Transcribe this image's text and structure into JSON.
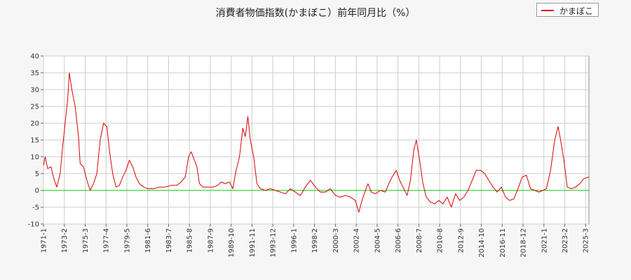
{
  "chart_data": {
    "type": "line",
    "title": "消費者物価指数(かまぼこ）前年同月比（%）",
    "xlabel": "",
    "ylabel": "",
    "ylim": [
      -10,
      40
    ],
    "yticks": [
      40,
      35,
      30,
      25,
      20,
      15,
      10,
      5,
      0,
      -5,
      -10
    ],
    "xlim": [
      "1971-1",
      "2025-7"
    ],
    "xticks": [
      "1971-1",
      "1973-2",
      "1975-3",
      "1977-4",
      "1979-5",
      "1981-6",
      "1983-7",
      "1985-8",
      "1987-9",
      "1989-10",
      "1991-11",
      "1993-12",
      "1996-1",
      "1998-2",
      "2000-3",
      "2002-4",
      "2004-5",
      "2006-6",
      "2008-7",
      "2010-8",
      "2012-9",
      "2014-10",
      "2016-11",
      "2018-12",
      "2021-1",
      "2023-2",
      "2025-3"
    ],
    "grid": true,
    "legend": "top-right",
    "reference_line": {
      "y": 0,
      "color": "#00cc00"
    },
    "series": [
      {
        "name": "かまぼこ",
        "color": "#dd0000",
        "points": [
          [
            "1971-1",
            7.5
          ],
          [
            "1971-3",
            10
          ],
          [
            "1971-6",
            6.5
          ],
          [
            "1971-10",
            7
          ],
          [
            "1972-2",
            3
          ],
          [
            "1972-5",
            1
          ],
          [
            "1972-9",
            5
          ],
          [
            "1972-12",
            13
          ],
          [
            "1973-3",
            20
          ],
          [
            "1973-6",
            27
          ],
          [
            "1973-8",
            35
          ],
          [
            "1973-11",
            30
          ],
          [
            "1974-3",
            25
          ],
          [
            "1974-7",
            16
          ],
          [
            "1974-9",
            8
          ],
          [
            "1975-1",
            7
          ],
          [
            "1975-5",
            3
          ],
          [
            "1975-9",
            0
          ],
          [
            "1976-1",
            2
          ],
          [
            "1976-5",
            5
          ],
          [
            "1976-9",
            15
          ],
          [
            "1977-1",
            20
          ],
          [
            "1977-5",
            19
          ],
          [
            "1977-8",
            12
          ],
          [
            "1977-12",
            5
          ],
          [
            "1978-4",
            1
          ],
          [
            "1978-8",
            1.5
          ],
          [
            "1978-12",
            4
          ],
          [
            "1979-4",
            6
          ],
          [
            "1979-8",
            9
          ],
          [
            "1979-12",
            7
          ],
          [
            "1980-4",
            4
          ],
          [
            "1980-8",
            2
          ],
          [
            "1981-1",
            1
          ],
          [
            "1981-6",
            0.5
          ],
          [
            "1982-1",
            0.5
          ],
          [
            "1982-8",
            1
          ],
          [
            "1983-3",
            1
          ],
          [
            "1983-10",
            1.5
          ],
          [
            "1984-5",
            1.5
          ],
          [
            "1984-10",
            2.5
          ],
          [
            "1985-3",
            4
          ],
          [
            "1985-7",
            10
          ],
          [
            "1985-10",
            11.5
          ],
          [
            "1986-2",
            9
          ],
          [
            "1986-5",
            7
          ],
          [
            "1986-8",
            2
          ],
          [
            "1986-12",
            1
          ],
          [
            "1987-6",
            1
          ],
          [
            "1988-1",
            1
          ],
          [
            "1988-6",
            1.5
          ],
          [
            "1988-10",
            2.5
          ],
          [
            "1989-3",
            2
          ],
          [
            "1989-8",
            2.5
          ],
          [
            "1989-12",
            0.5
          ],
          [
            "1990-4",
            6
          ],
          [
            "1990-8",
            10
          ],
          [
            "1990-12",
            18.5
          ],
          [
            "1991-3",
            16
          ],
          [
            "1991-6",
            22
          ],
          [
            "1991-9",
            15
          ],
          [
            "1992-1",
            10
          ],
          [
            "1992-5",
            2
          ],
          [
            "1992-9",
            0.5
          ],
          [
            "1993-3",
            0
          ],
          [
            "1993-9",
            0.5
          ],
          [
            "1994-3",
            0
          ],
          [
            "1994-9",
            -0.5
          ],
          [
            "1995-3",
            -1
          ],
          [
            "1995-9",
            0.5
          ],
          [
            "1996-3",
            -0.5
          ],
          [
            "1996-9",
            -1.5
          ],
          [
            "1997-3",
            1
          ],
          [
            "1997-9",
            3
          ],
          [
            "1998-3",
            1
          ],
          [
            "1998-9",
            -0.5
          ],
          [
            "1999-3",
            -0.5
          ],
          [
            "1999-9",
            0.5
          ],
          [
            "2000-3",
            -1.5
          ],
          [
            "2000-9",
            -2
          ],
          [
            "2001-3",
            -1.5
          ],
          [
            "2001-9",
            -2
          ],
          [
            "2002-3",
            -3
          ],
          [
            "2002-7",
            -6.5
          ],
          [
            "2002-11",
            -3
          ],
          [
            "2003-3",
            0
          ],
          [
            "2003-6",
            2
          ],
          [
            "2003-10",
            -0.5
          ],
          [
            "2004-3",
            -1
          ],
          [
            "2004-9",
            0
          ],
          [
            "2005-3",
            -0.5
          ],
          [
            "2005-7",
            2
          ],
          [
            "2005-11",
            4
          ],
          [
            "2006-4",
            6
          ],
          [
            "2006-8",
            3
          ],
          [
            "2006-12",
            1
          ],
          [
            "2007-5",
            -1.5
          ],
          [
            "2007-9",
            3
          ],
          [
            "2008-1",
            12
          ],
          [
            "2008-4",
            15
          ],
          [
            "2008-8",
            9
          ],
          [
            "2008-12",
            2
          ],
          [
            "2009-4",
            -2
          ],
          [
            "2009-9",
            -3.5
          ],
          [
            "2010-2",
            -4
          ],
          [
            "2010-7",
            -3
          ],
          [
            "2010-12",
            -4
          ],
          [
            "2011-5",
            -2
          ],
          [
            "2011-10",
            -5
          ],
          [
            "2012-3",
            -1
          ],
          [
            "2012-8",
            -3
          ],
          [
            "2013-1",
            -2
          ],
          [
            "2013-6",
            0
          ],
          [
            "2013-11",
            3
          ],
          [
            "2014-4",
            6
          ],
          [
            "2014-9",
            6
          ],
          [
            "2015-2",
            5
          ],
          [
            "2015-7",
            3
          ],
          [
            "2015-12",
            1
          ],
          [
            "2016-5",
            -0.5
          ],
          [
            "2016-10",
            1
          ],
          [
            "2017-3",
            -2
          ],
          [
            "2017-8",
            -3
          ],
          [
            "2018-1",
            -2.5
          ],
          [
            "2018-6",
            0.5
          ],
          [
            "2018-11",
            4
          ],
          [
            "2019-4",
            4.5
          ],
          [
            "2019-9",
            0.5
          ],
          [
            "2020-2",
            0
          ],
          [
            "2020-7",
            -0.5
          ],
          [
            "2020-12",
            0
          ],
          [
            "2021-4",
            0.5
          ],
          [
            "2021-9",
            6
          ],
          [
            "2022-2",
            15
          ],
          [
            "2022-6",
            19
          ],
          [
            "2022-9",
            15
          ],
          [
            "2023-1",
            9
          ],
          [
            "2023-5",
            1
          ],
          [
            "2023-10",
            0.5
          ],
          [
            "2024-3",
            1
          ],
          [
            "2024-8",
            2
          ],
          [
            "2025-1",
            3.5
          ],
          [
            "2025-7",
            4
          ]
        ]
      }
    ]
  }
}
